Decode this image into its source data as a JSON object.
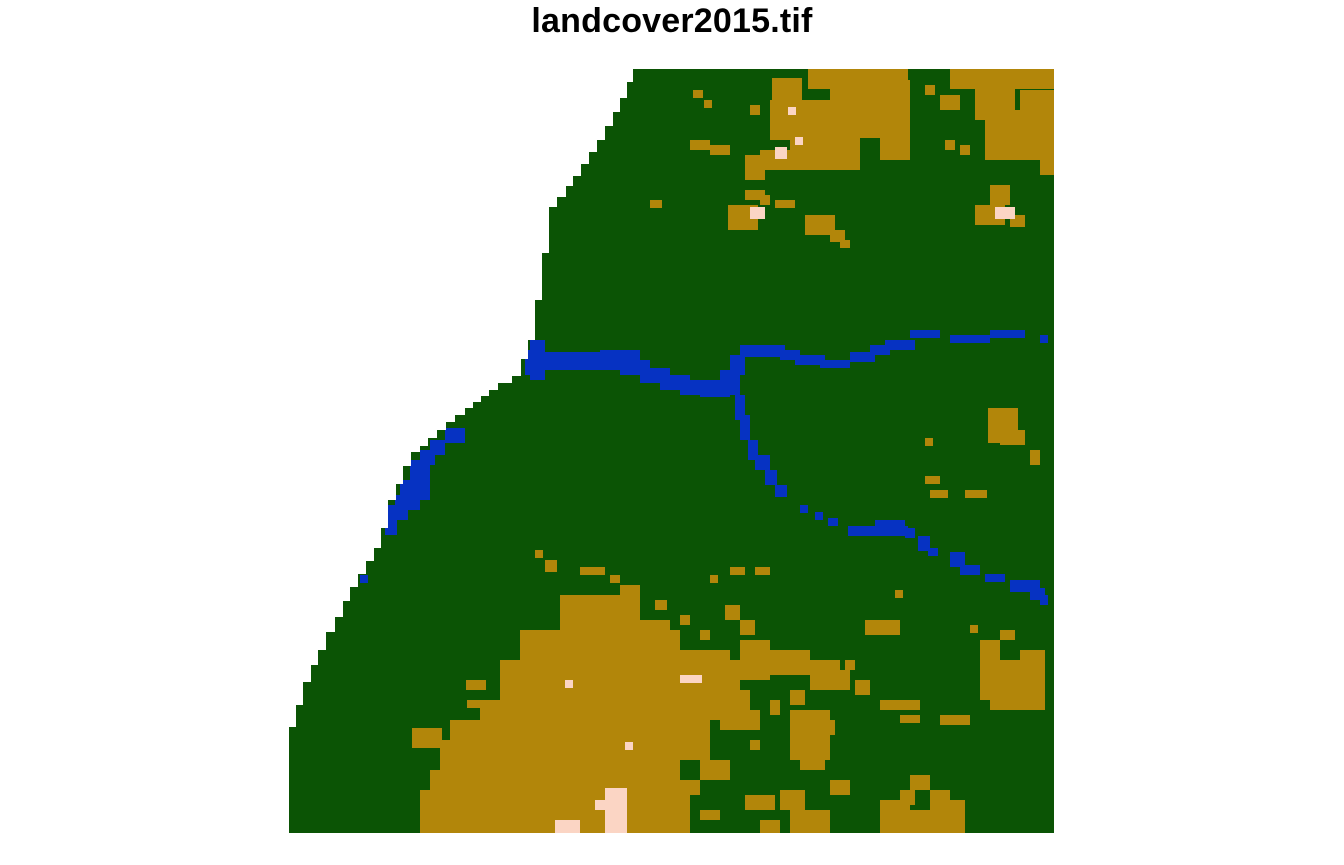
{
  "title": "landcover2015.tif",
  "palette": {
    "forest": "#0b5405",
    "grassland": "#b2860a",
    "water": "#0632c2",
    "barren": "#fbd5c4"
  },
  "raster": {
    "classes": [
      "forest",
      "grassland",
      "water",
      "barren"
    ],
    "no_data": "white"
  }
}
